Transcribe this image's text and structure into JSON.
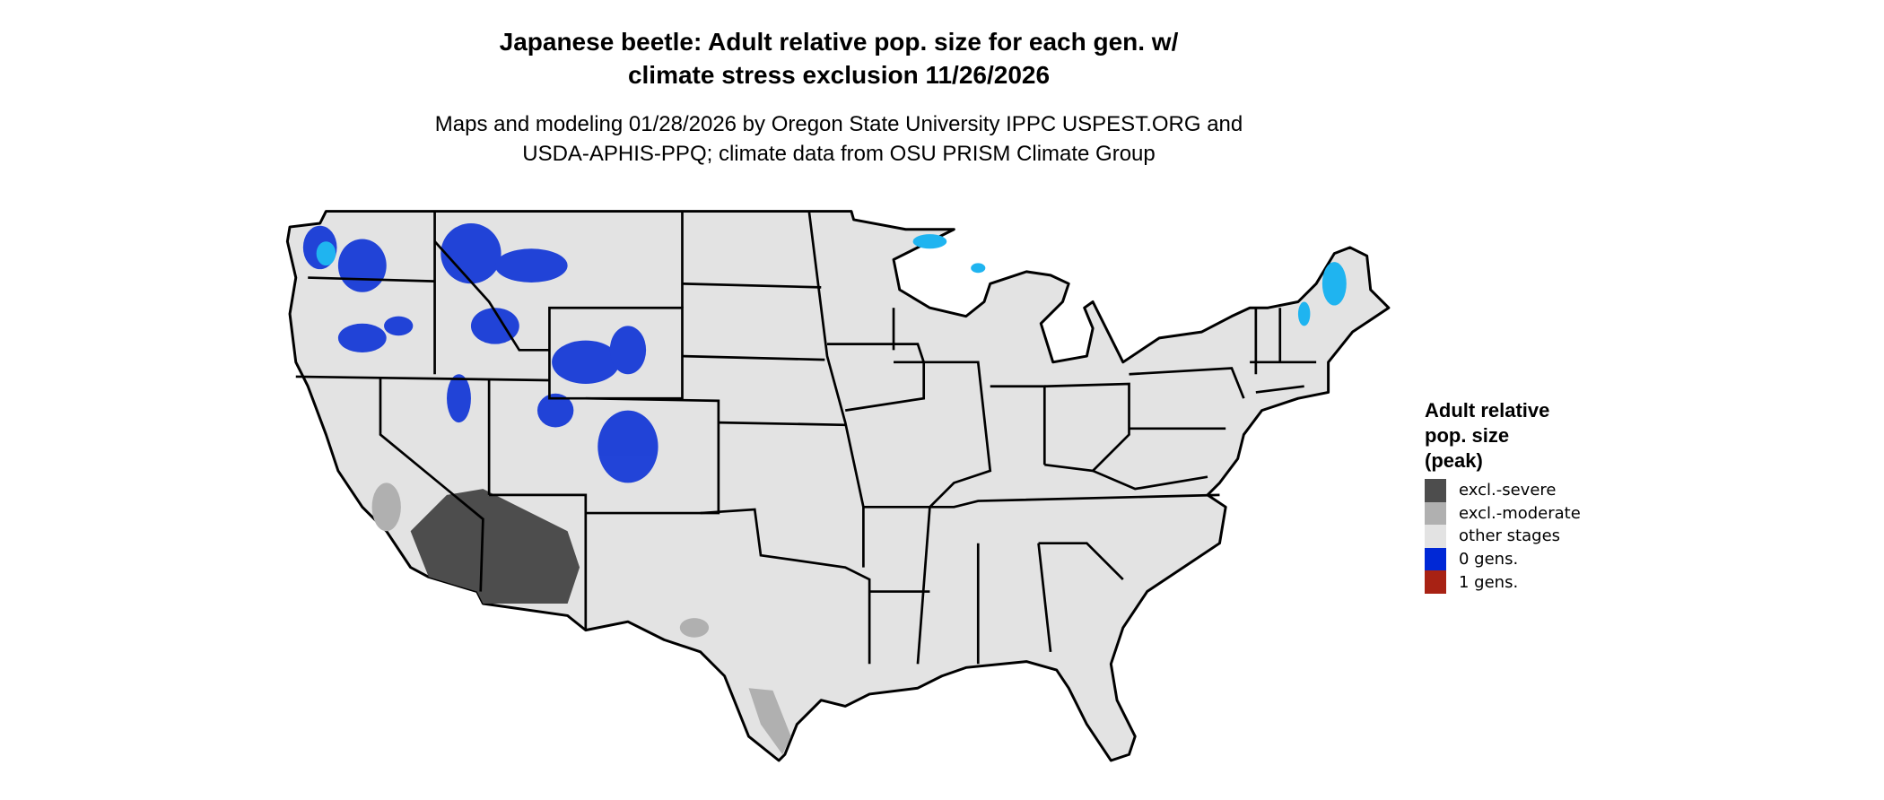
{
  "title": {
    "line1": "Japanese beetle: Adult relative pop. size for each gen. w/",
    "line2": "climate stress exclusion 11/26/2026"
  },
  "subtitle": {
    "line1": "Maps and modeling 01/28/2026 by Oregon State University IPPC USPEST.ORG and",
    "line2": "USDA-APHIS-PPQ; climate data from OSU PRISM Climate Group"
  },
  "legend": {
    "title": [
      "Adult relative",
      "pop. size",
      "(peak)"
    ],
    "items": [
      {
        "label": "excl.-severe",
        "color": "#4d4d4d"
      },
      {
        "label": "excl.-moderate",
        "color": "#b0b0b0"
      },
      {
        "label": "other stages",
        "color": "#e3e3e3"
      },
      {
        "label": "0 gens.",
        "color": "#0028d6"
      },
      {
        "label": "1 gens.",
        "color": "#a82214"
      }
    ]
  },
  "map": {
    "region": "Contiguous United States",
    "base_color": "#e3e3e3",
    "border_color": "#000000",
    "highlight_color": "#1fb4f0"
  }
}
